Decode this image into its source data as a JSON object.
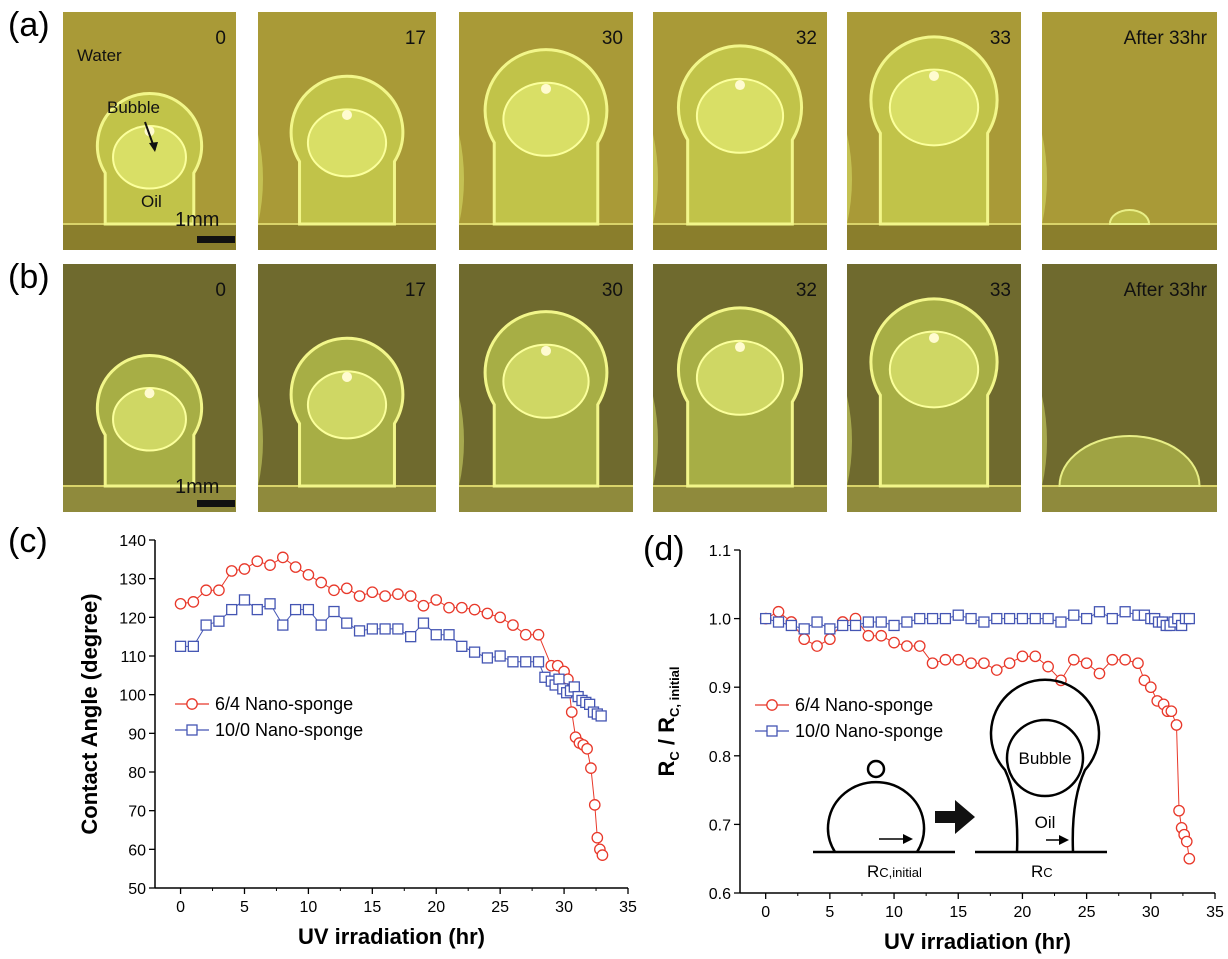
{
  "panel_labels": {
    "a": "(a)",
    "b": "(b)",
    "c": "(c)",
    "d": "(d)"
  },
  "photos_a": {
    "frames": [
      "0",
      "17",
      "30",
      "32",
      "33",
      "After 33hr"
    ],
    "labels": {
      "water": "Water",
      "bubble": "Bubble",
      "oil": "Oil",
      "scale": "1mm"
    }
  },
  "photos_b": {
    "frames": [
      "0",
      "17",
      "30",
      "32",
      "33",
      "After 33hr"
    ],
    "labels": {
      "scale": "1mm"
    }
  },
  "colors": {
    "red": "#e8382a",
    "blue": "#4455b3",
    "photo_a_bg": "#a99a37",
    "photo_b_bg": "#6f6a2e"
  },
  "chart_data": [
    {
      "type": "scatter",
      "panel": "(c)",
      "xlabel": "UV irradiation (hr)",
      "ylabel": "Contact Angle (degree)",
      "xlim": [
        -2,
        35
      ],
      "ylim": [
        50,
        140
      ],
      "xticks": [
        "0",
        "5",
        "10",
        "15",
        "20",
        "25",
        "30",
        "35"
      ],
      "yticks": [
        "50",
        "60",
        "70",
        "80",
        "90",
        "100",
        "110",
        "120",
        "130",
        "140"
      ],
      "legend": "center-left",
      "series": [
        {
          "name": "6/4 Nano-sponge",
          "marker": "circle",
          "color": "#e8382a",
          "x": [
            0,
            1,
            2,
            3,
            4,
            5,
            6,
            7,
            8,
            9,
            10,
            11,
            12,
            13,
            14,
            15,
            16,
            17,
            18,
            19,
            20,
            21,
            22,
            23,
            24,
            25,
            26,
            27,
            28,
            29,
            29.5,
            30,
            30.3,
            30.6,
            30.9,
            31.2,
            31.5,
            31.8,
            32.1,
            32.4,
            32.6,
            32.8,
            33
          ],
          "y": [
            123.5,
            124,
            127,
            127,
            132,
            132.5,
            134.5,
            133.5,
            135.5,
            133,
            131,
            129,
            127,
            127.5,
            125.5,
            126.5,
            125.5,
            126,
            125.5,
            123,
            124.5,
            122.5,
            122.5,
            122,
            121,
            120,
            118,
            115.5,
            115.5,
            107.5,
            107.5,
            106,
            104,
            95.5,
            89,
            87.5,
            87,
            86,
            81,
            71.5,
            63,
            60,
            58.5
          ]
        },
        {
          "name": "10/0 Nano-sponge",
          "marker": "square",
          "color": "#4455b3",
          "x": [
            0,
            1,
            2,
            3,
            4,
            5,
            6,
            7,
            8,
            9,
            10,
            11,
            12,
            13,
            14,
            15,
            16,
            17,
            18,
            19,
            20,
            21,
            22,
            23,
            24,
            25,
            26,
            27,
            28,
            28.5,
            29,
            29.3,
            29.6,
            29.9,
            30.2,
            30.5,
            30.8,
            31.1,
            31.4,
            31.7,
            32,
            32.3,
            32.6,
            32.9
          ],
          "y": [
            112.5,
            112.5,
            118,
            119,
            122,
            124.5,
            122,
            123.5,
            118,
            122,
            122,
            118,
            121.5,
            118.5,
            116.5,
            117,
            117,
            117,
            115,
            118.5,
            115.5,
            115.5,
            112.5,
            111,
            109.5,
            110,
            108.5,
            108.5,
            108.5,
            104.5,
            103.5,
            102.5,
            104,
            101.5,
            100.5,
            101,
            102,
            99.5,
            98.5,
            98,
            97.5,
            95.5,
            95,
            94.5
          ]
        }
      ]
    },
    {
      "type": "scatter",
      "panel": "(d)",
      "xlabel": "UV irradiation (hr)",
      "ylabel": "R_C / R_C, initial",
      "xlim": [
        -2,
        35
      ],
      "ylim": [
        0.6,
        1.1
      ],
      "xticks": [
        "0",
        "5",
        "10",
        "15",
        "20",
        "25",
        "30",
        "35"
      ],
      "yticks": [
        "0.6",
        "0.7",
        "0.8",
        "0.9",
        "1.0",
        "1.1"
      ],
      "legend": "center-left",
      "series": [
        {
          "name": "6/4 Nano-sponge",
          "marker": "circle",
          "color": "#e8382a",
          "x": [
            0,
            1,
            2,
            3,
            4,
            5,
            6,
            7,
            8,
            9,
            10,
            11,
            12,
            13,
            14,
            15,
            16,
            17,
            18,
            19,
            20,
            21,
            22,
            23,
            24,
            25,
            26,
            27,
            28,
            29,
            29.5,
            30,
            30.5,
            31,
            31.3,
            31.6,
            32,
            32.2,
            32.4,
            32.6,
            32.8,
            33
          ],
          "y": [
            1.0,
            1.01,
            0.995,
            0.97,
            0.96,
            0.97,
            0.995,
            1.0,
            0.975,
            0.975,
            0.965,
            0.96,
            0.96,
            0.935,
            0.94,
            0.94,
            0.935,
            0.935,
            0.925,
            0.935,
            0.945,
            0.945,
            0.93,
            0.91,
            0.94,
            0.935,
            0.92,
            0.94,
            0.94,
            0.935,
            0.91,
            0.9,
            0.88,
            0.875,
            0.865,
            0.865,
            0.845,
            0.72,
            0.695,
            0.685,
            0.675,
            0.65
          ]
        },
        {
          "name": "10/0 Nano-sponge",
          "marker": "square",
          "color": "#4455b3",
          "x": [
            0,
            1,
            2,
            3,
            4,
            5,
            6,
            7,
            8,
            9,
            10,
            11,
            12,
            13,
            14,
            15,
            16,
            17,
            18,
            19,
            20,
            21,
            22,
            23,
            24,
            25,
            26,
            27,
            28,
            29,
            29.5,
            30,
            30.3,
            30.6,
            30.9,
            31.2,
            31.5,
            31.8,
            32.1,
            32.4,
            32.7,
            33
          ],
          "y": [
            1.0,
            0.995,
            0.99,
            0.985,
            0.995,
            0.985,
            0.99,
            0.99,
            0.995,
            0.995,
            0.99,
            0.995,
            1.0,
            1.0,
            1.0,
            1.005,
            1.0,
            0.995,
            1.0,
            1.0,
            1.0,
            1.0,
            1.0,
            0.995,
            1.005,
            1.0,
            1.01,
            1.0,
            1.01,
            1.005,
            1.005,
            1.0,
            1.0,
            0.995,
            0.995,
            0.99,
            0.99,
            0.995,
            1.0,
            0.99,
            1.0,
            1.0
          ]
        }
      ]
    }
  ],
  "inset_d": {
    "bubble": "Bubble",
    "oil": "Oil",
    "rc_initial": "R",
    "rc_initial_sub": "C,initial",
    "rc": "R",
    "rc_sub": "C"
  }
}
